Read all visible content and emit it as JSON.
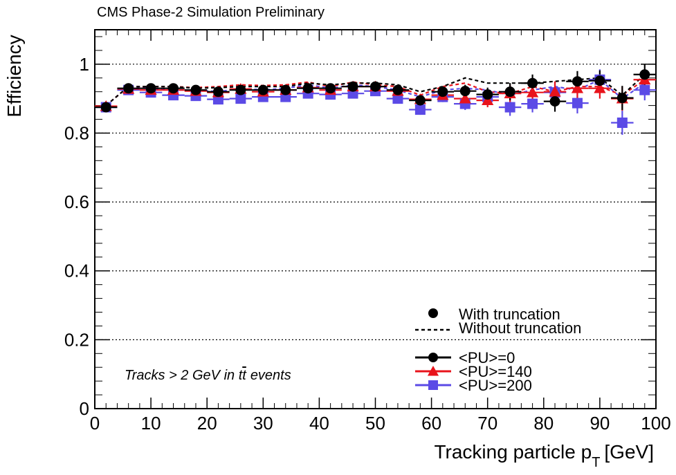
{
  "chart_data": {
    "type": "scatter",
    "title": "CMS Phase-2 Simulation Preliminary",
    "xlabel": "Tracking particle p",
    "xlabel_sub": "T",
    "xlabel_unit": "[GeV]",
    "ylabel": "Efficiency",
    "xlim": [
      0,
      100
    ],
    "ylim": [
      0,
      1.1
    ],
    "grid": "y-dotted",
    "x_ticks": [
      0,
      10,
      20,
      30,
      40,
      50,
      60,
      70,
      80,
      90,
      100
    ],
    "y_ticks": [
      0,
      0.2,
      0.4,
      0.6,
      0.8,
      1
    ],
    "y_tick_labels": [
      "0",
      "0.2",
      "0.4",
      "0.6",
      "0.8",
      "1"
    ],
    "annotation": "Tracks > 2 GeV in t",
    "annotation_tbar": "t",
    "annotation_tail": "events",
    "legend": {
      "style_header": [
        {
          "label": "With truncation",
          "kind": "marker"
        },
        {
          "label": "Without truncation",
          "kind": "dashed"
        }
      ],
      "placement": "bottom-right"
    },
    "x": [
      2,
      6,
      10,
      14,
      18,
      22,
      26,
      30,
      34,
      38,
      42,
      46,
      50,
      54,
      58,
      62,
      66,
      70,
      74,
      78,
      82,
      86,
      90,
      94,
      98
    ],
    "x_halfwidth": 2,
    "series": [
      {
        "name": "<PU>=0",
        "color": "#000000",
        "marker": "circle",
        "values": [
          0.875,
          0.93,
          0.93,
          0.93,
          0.925,
          0.92,
          0.925,
          0.925,
          0.925,
          0.93,
          0.93,
          0.935,
          0.935,
          0.925,
          0.895,
          0.92,
          0.922,
          0.912,
          0.92,
          0.945,
          0.892,
          0.95,
          0.952,
          0.902,
          0.97
        ],
        "errors": [
          0.008,
          0.006,
          0.006,
          0.006,
          0.006,
          0.006,
          0.006,
          0.006,
          0.006,
          0.007,
          0.007,
          0.007,
          0.008,
          0.01,
          0.015,
          0.015,
          0.018,
          0.02,
          0.025,
          0.025,
          0.03,
          0.03,
          0.03,
          0.035,
          0.03
        ],
        "without_truncation": [
          0.88,
          0.935,
          0.935,
          0.935,
          0.93,
          0.932,
          0.935,
          0.935,
          0.935,
          0.945,
          0.94,
          0.945,
          0.945,
          0.94,
          0.92,
          0.935,
          0.96,
          0.945,
          0.945,
          0.945,
          0.95,
          0.955,
          0.96,
          0.91,
          0.97
        ]
      },
      {
        "name": "<PU>=140",
        "color": "#e8131b",
        "marker": "triangle",
        "values": [
          0.878,
          0.928,
          0.925,
          0.925,
          0.922,
          0.918,
          0.928,
          0.92,
          0.925,
          0.932,
          0.925,
          0.935,
          0.935,
          0.922,
          0.898,
          0.91,
          0.9,
          0.895,
          0.915,
          0.918,
          0.92,
          0.93,
          0.93,
          0.9,
          0.955
        ],
        "errors": [
          0.008,
          0.006,
          0.006,
          0.006,
          0.006,
          0.006,
          0.006,
          0.006,
          0.006,
          0.007,
          0.007,
          0.007,
          0.008,
          0.01,
          0.015,
          0.015,
          0.018,
          0.02,
          0.025,
          0.025,
          0.03,
          0.03,
          0.03,
          0.035,
          0.03
        ],
        "without_truncation": [
          0.88,
          0.935,
          0.935,
          0.935,
          0.932,
          0.935,
          0.94,
          0.938,
          0.94,
          0.948,
          0.935,
          0.948,
          0.94,
          0.935,
          0.91,
          0.935,
          0.945,
          0.92,
          0.915,
          0.935,
          0.92,
          0.935,
          0.935,
          0.91,
          0.955
        ]
      },
      {
        "name": "<PU>=200",
        "color": "#5b4ae6",
        "marker": "square",
        "values": [
          0.875,
          0.925,
          0.918,
          0.91,
          0.908,
          0.898,
          0.9,
          0.905,
          0.905,
          0.915,
          0.912,
          0.915,
          0.922,
          0.9,
          0.868,
          0.905,
          0.885,
          0.905,
          0.875,
          0.885,
          0.918,
          0.887,
          0.955,
          0.83,
          0.925
        ],
        "errors": [
          0.008,
          0.006,
          0.006,
          0.006,
          0.006,
          0.006,
          0.006,
          0.006,
          0.006,
          0.007,
          0.007,
          0.007,
          0.008,
          0.01,
          0.015,
          0.015,
          0.018,
          0.02,
          0.025,
          0.025,
          0.03,
          0.03,
          0.03,
          0.035,
          0.03
        ],
        "without_truncation": [
          0.88,
          0.935,
          0.93,
          0.925,
          0.925,
          0.92,
          0.93,
          0.925,
          0.93,
          0.94,
          0.93,
          0.94,
          0.935,
          0.925,
          0.905,
          0.925,
          0.93,
          0.925,
          0.91,
          0.925,
          0.935,
          0.925,
          0.955,
          0.9,
          0.945
        ]
      }
    ]
  }
}
